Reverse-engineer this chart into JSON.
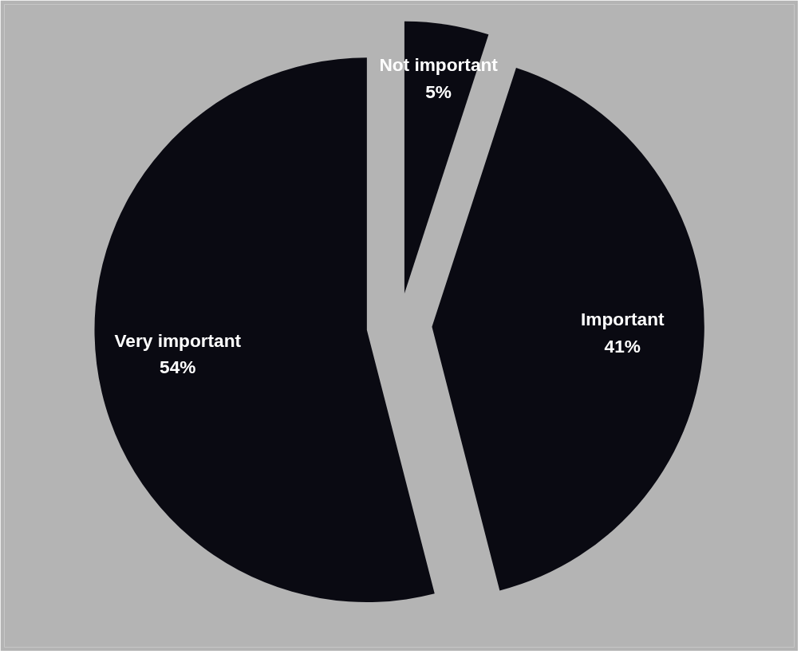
{
  "chart_data": {
    "type": "pie",
    "categories": [
      "Not important",
      "Important",
      "Very important"
    ],
    "values": [
      5,
      41,
      54
    ],
    "value_labels": [
      "5%",
      "41%",
      "54%"
    ],
    "colors": [
      "#0a0a12",
      "#0a0a12",
      "#0a0a12"
    ]
  }
}
